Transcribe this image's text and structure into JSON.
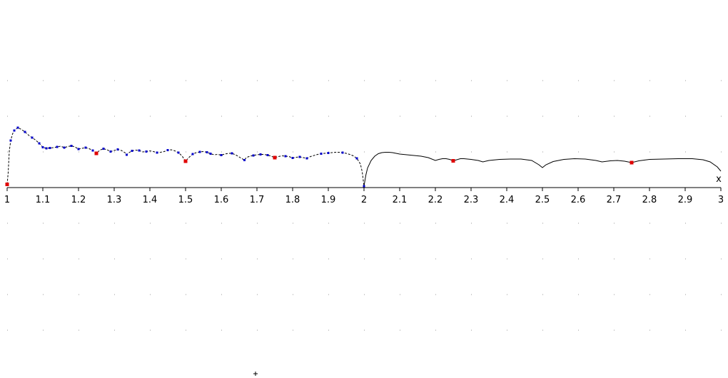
{
  "chart_data": {
    "type": "line",
    "title": "",
    "xlabel": "x",
    "ylabel": "",
    "xlim": [
      1,
      3
    ],
    "ylim": [
      -4.8,
      3.0
    ],
    "grid": "dotted",
    "x_ticks": [
      "1",
      "1.1",
      "1.2",
      "1.3",
      "1.4",
      "1.5",
      "1.6",
      "1.7",
      "1.8",
      "1.9",
      "2",
      "2.1",
      "2.2",
      "2.3",
      "2.4",
      "2.5",
      "2.6",
      "2.7",
      "2.8",
      "2.9",
      "3"
    ],
    "colors": {
      "curve": "#000000",
      "blue_points": "#0000cc",
      "red_points": "#e00000",
      "grid": "#9a9a9a"
    },
    "curve": [
      [
        1.0,
        0.09
      ],
      [
        1.003,
        0.43
      ],
      [
        1.006,
        1.02
      ],
      [
        1.01,
        1.32
      ],
      [
        1.015,
        1.5
      ],
      [
        1.02,
        1.6
      ],
      [
        1.03,
        1.68
      ],
      [
        1.04,
        1.63
      ],
      [
        1.05,
        1.56
      ],
      [
        1.06,
        1.47
      ],
      [
        1.07,
        1.4
      ],
      [
        1.08,
        1.33
      ],
      [
        1.09,
        1.24
      ],
      [
        1.1,
        1.13
      ],
      [
        1.11,
        1.1
      ],
      [
        1.12,
        1.11
      ],
      [
        1.13,
        1.12
      ],
      [
        1.14,
        1.14
      ],
      [
        1.15,
        1.16
      ],
      [
        1.16,
        1.12
      ],
      [
        1.17,
        1.15
      ],
      [
        1.18,
        1.17
      ],
      [
        1.19,
        1.14
      ],
      [
        1.2,
        1.08
      ],
      [
        1.21,
        1.1
      ],
      [
        1.22,
        1.12
      ],
      [
        1.23,
        1.09
      ],
      [
        1.24,
        1.04
      ],
      [
        1.25,
        0.96
      ],
      [
        1.26,
        1.05
      ],
      [
        1.27,
        1.09
      ],
      [
        1.28,
        1.06
      ],
      [
        1.29,
        1.01
      ],
      [
        1.3,
        1.04
      ],
      [
        1.31,
        1.07
      ],
      [
        1.32,
        1.04
      ],
      [
        1.33,
        0.98
      ],
      [
        1.335,
        0.92
      ],
      [
        1.34,
        0.97
      ],
      [
        1.35,
        1.03
      ],
      [
        1.36,
        1.05
      ],
      [
        1.37,
        1.04
      ],
      [
        1.38,
        1.0
      ],
      [
        1.39,
        1.01
      ],
      [
        1.4,
        1.03
      ],
      [
        1.41,
        1.01
      ],
      [
        1.42,
        0.98
      ],
      [
        1.43,
        0.99
      ],
      [
        1.44,
        1.01
      ],
      [
        1.45,
        1.05
      ],
      [
        1.46,
        1.06
      ],
      [
        1.47,
        1.03
      ],
      [
        1.48,
        0.98
      ],
      [
        1.49,
        0.89
      ],
      [
        1.5,
        0.74
      ],
      [
        1.51,
        0.85
      ],
      [
        1.52,
        0.94
      ],
      [
        1.53,
        0.98
      ],
      [
        1.54,
        1.0
      ],
      [
        1.55,
        1.01
      ],
      [
        1.56,
        0.99
      ],
      [
        1.57,
        0.95
      ],
      [
        1.58,
        0.92
      ],
      [
        1.59,
        0.93
      ],
      [
        1.6,
        0.91
      ],
      [
        1.61,
        0.94
      ],
      [
        1.62,
        0.96
      ],
      [
        1.63,
        0.96
      ],
      [
        1.64,
        0.92
      ],
      [
        1.65,
        0.86
      ],
      [
        1.665,
        0.77
      ],
      [
        1.67,
        0.84
      ],
      [
        1.68,
        0.88
      ],
      [
        1.69,
        0.9
      ],
      [
        1.7,
        0.92
      ],
      [
        1.71,
        0.93
      ],
      [
        1.72,
        0.93
      ],
      [
        1.73,
        0.91
      ],
      [
        1.74,
        0.88
      ],
      [
        1.75,
        0.84
      ],
      [
        1.76,
        0.87
      ],
      [
        1.77,
        0.89
      ],
      [
        1.78,
        0.88
      ],
      [
        1.79,
        0.87
      ],
      [
        1.8,
        0.83
      ],
      [
        1.81,
        0.85
      ],
      [
        1.82,
        0.86
      ],
      [
        1.83,
        0.84
      ],
      [
        1.84,
        0.82
      ],
      [
        1.85,
        0.87
      ],
      [
        1.86,
        0.9
      ],
      [
        1.87,
        0.93
      ],
      [
        1.88,
        0.95
      ],
      [
        1.89,
        0.96
      ],
      [
        1.9,
        0.97
      ],
      [
        1.91,
        0.98
      ],
      [
        1.92,
        0.99
      ],
      [
        1.93,
        0.99
      ],
      [
        1.94,
        0.98
      ],
      [
        1.95,
        0.96
      ],
      [
        1.96,
        0.93
      ],
      [
        1.97,
        0.89
      ],
      [
        1.98,
        0.82
      ],
      [
        1.99,
        0.66
      ],
      [
        1.995,
        0.44
      ],
      [
        2.0,
        0.04
      ],
      [
        2.005,
        0.34
      ],
      [
        2.01,
        0.55
      ],
      [
        2.02,
        0.76
      ],
      [
        2.03,
        0.88
      ],
      [
        2.04,
        0.95
      ],
      [
        2.05,
        0.98
      ],
      [
        2.06,
        0.99
      ],
      [
        2.07,
        0.99
      ],
      [
        2.08,
        0.98
      ],
      [
        2.09,
        0.96
      ],
      [
        2.1,
        0.94
      ],
      [
        2.12,
        0.92
      ],
      [
        2.14,
        0.9
      ],
      [
        2.16,
        0.88
      ],
      [
        2.18,
        0.84
      ],
      [
        2.2,
        0.76
      ],
      [
        2.21,
        0.79
      ],
      [
        2.22,
        0.81
      ],
      [
        2.23,
        0.81
      ],
      [
        2.24,
        0.79
      ],
      [
        2.25,
        0.75
      ],
      [
        2.26,
        0.78
      ],
      [
        2.27,
        0.81
      ],
      [
        2.28,
        0.81
      ],
      [
        2.29,
        0.8
      ],
      [
        2.3,
        0.79
      ],
      [
        2.32,
        0.76
      ],
      [
        2.333,
        0.72
      ],
      [
        2.35,
        0.76
      ],
      [
        2.38,
        0.79
      ],
      [
        2.41,
        0.8
      ],
      [
        2.44,
        0.8
      ],
      [
        2.47,
        0.76
      ],
      [
        2.49,
        0.64
      ],
      [
        2.5,
        0.56
      ],
      [
        2.51,
        0.64
      ],
      [
        2.53,
        0.73
      ],
      [
        2.56,
        0.79
      ],
      [
        2.59,
        0.81
      ],
      [
        2.62,
        0.8
      ],
      [
        2.65,
        0.76
      ],
      [
        2.667,
        0.72
      ],
      [
        2.69,
        0.75
      ],
      [
        2.71,
        0.76
      ],
      [
        2.73,
        0.74
      ],
      [
        2.75,
        0.7
      ],
      [
        2.77,
        0.75
      ],
      [
        2.8,
        0.79
      ],
      [
        2.84,
        0.8
      ],
      [
        2.88,
        0.81
      ],
      [
        2.92,
        0.81
      ],
      [
        2.95,
        0.78
      ],
      [
        2.97,
        0.72
      ],
      [
        2.99,
        0.58
      ],
      [
        3.0,
        0.46
      ]
    ],
    "blue_points": [
      [
        1.01,
        1.32
      ],
      [
        1.02,
        1.6
      ],
      [
        1.03,
        1.68
      ],
      [
        1.05,
        1.56
      ],
      [
        1.07,
        1.4
      ],
      [
        1.09,
        1.24
      ],
      [
        1.1,
        1.13
      ],
      [
        1.11,
        1.1
      ],
      [
        1.12,
        1.11
      ],
      [
        1.14,
        1.14
      ],
      [
        1.16,
        1.12
      ],
      [
        1.18,
        1.17
      ],
      [
        1.2,
        1.08
      ],
      [
        1.22,
        1.12
      ],
      [
        1.24,
        1.04
      ],
      [
        1.27,
        1.09
      ],
      [
        1.29,
        1.01
      ],
      [
        1.31,
        1.07
      ],
      [
        1.335,
        0.92
      ],
      [
        1.35,
        1.03
      ],
      [
        1.37,
        1.04
      ],
      [
        1.39,
        1.01
      ],
      [
        1.42,
        0.98
      ],
      [
        1.45,
        1.05
      ],
      [
        1.48,
        0.98
      ],
      [
        1.52,
        0.94
      ],
      [
        1.54,
        1.0
      ],
      [
        1.56,
        0.99
      ],
      [
        1.57,
        0.95
      ],
      [
        1.6,
        0.91
      ],
      [
        1.63,
        0.96
      ],
      [
        1.665,
        0.77
      ],
      [
        1.69,
        0.9
      ],
      [
        1.71,
        0.93
      ],
      [
        1.73,
        0.91
      ],
      [
        1.78,
        0.88
      ],
      [
        1.8,
        0.83
      ],
      [
        1.82,
        0.86
      ],
      [
        1.84,
        0.82
      ],
      [
        1.88,
        0.95
      ],
      [
        1.9,
        0.97
      ],
      [
        1.94,
        0.98
      ],
      [
        1.98,
        0.82
      ],
      [
        2.0,
        0.04
      ]
    ],
    "red_points": [
      [
        1.0,
        0.09
      ],
      [
        1.25,
        0.96
      ],
      [
        1.5,
        0.74
      ],
      [
        1.75,
        0.84
      ],
      [
        2.25,
        0.75
      ],
      [
        2.75,
        0.7
      ]
    ]
  }
}
